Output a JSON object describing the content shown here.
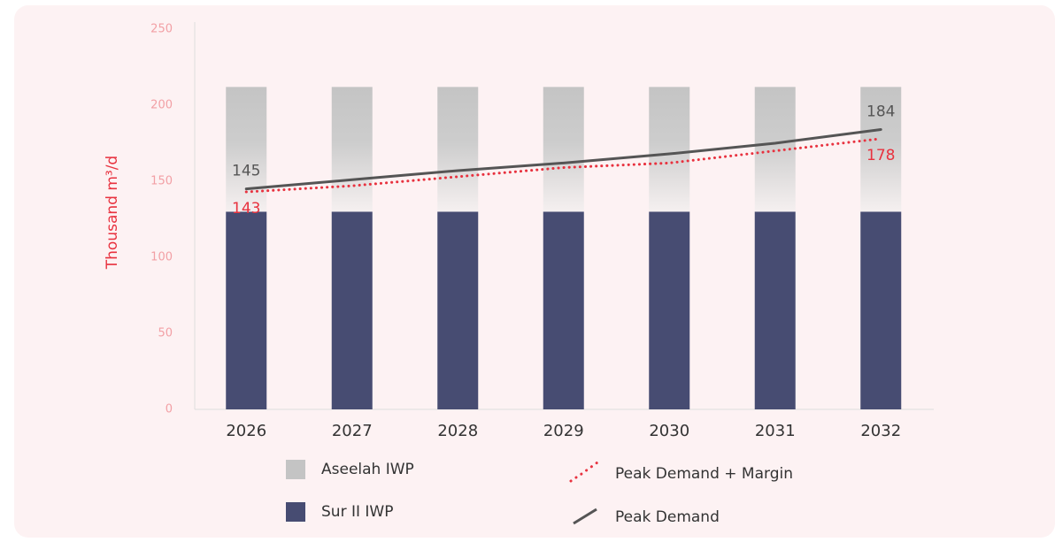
{
  "chart_data": {
    "type": "bar",
    "ylabel": "Thousand m³/d",
    "categories": [
      "2026",
      "2027",
      "2028",
      "2029",
      "2030",
      "2031",
      "2032"
    ],
    "series": [
      {
        "name": "Aseelah IWP",
        "type": "bar",
        "color": "#c4c4c4",
        "values": [
          82,
          82,
          82,
          82,
          82,
          82,
          82
        ]
      },
      {
        "name": "Sur II IWP",
        "type": "bar",
        "color": "#474c72",
        "values": [
          130,
          130,
          130,
          130,
          130,
          130,
          130
        ]
      },
      {
        "name": "Peak Demand + Margin",
        "type": "line",
        "style": "dotted",
        "color": "#e8323f",
        "values": [
          143,
          147,
          153,
          159,
          162,
          170,
          178
        ]
      },
      {
        "name": "Peak Demand",
        "type": "line",
        "style": "solid",
        "color": "#555555",
        "values": [
          145,
          151,
          157,
          162,
          168,
          175,
          184
        ]
      }
    ],
    "ylim": [
      0,
      250
    ],
    "yticks": [
      0,
      50,
      100,
      150,
      200,
      250
    ]
  }
}
